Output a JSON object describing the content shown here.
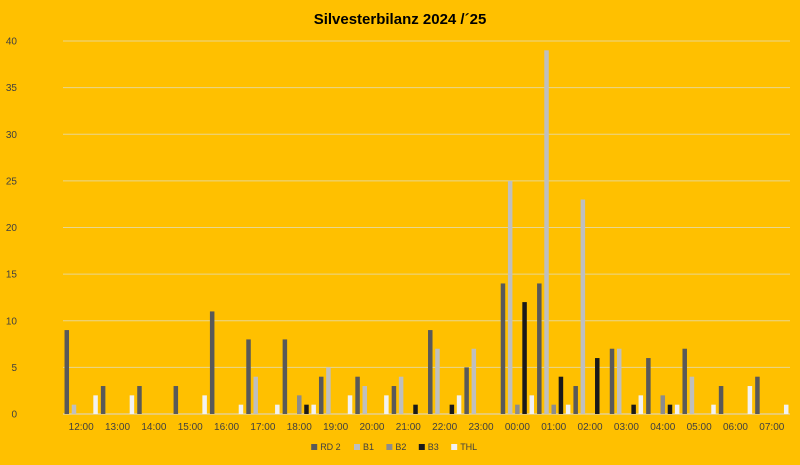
{
  "chart_data": {
    "type": "bar",
    "title": "Silvesterbilanz 2024 /´25",
    "xlabel": "",
    "ylabel": "",
    "ylim": [
      0,
      40
    ],
    "yticks": [
      0,
      5,
      10,
      15,
      20,
      25,
      30,
      35,
      40
    ],
    "grid": true,
    "legend_position": "bottom",
    "categories": [
      "12:00",
      "13:00",
      "14:00",
      "15:00",
      "16:00",
      "17:00",
      "18:00",
      "19:00",
      "20:00",
      "21:00",
      "22:00",
      "23:00",
      "00:00",
      "01:00",
      "02:00",
      "03:00",
      "04:00",
      "05:00",
      "06:00",
      "07:00"
    ],
    "series": [
      {
        "name": "RD 2",
        "color": "#595959",
        "values": [
          9,
          3,
          3,
          3,
          11,
          8,
          8,
          4,
          4,
          3,
          9,
          5,
          14,
          14,
          3,
          7,
          6,
          7,
          3,
          4
        ]
      },
      {
        "name": "B1",
        "color": "#bfbfbf",
        "values": [
          1,
          0,
          0,
          0,
          0,
          4,
          0,
          5,
          3,
          4,
          7,
          7,
          25,
          39,
          23,
          7,
          0,
          4,
          0,
          0
        ]
      },
      {
        "name": "B2",
        "color": "#8c8c8c",
        "values": [
          0,
          0,
          0,
          0,
          0,
          0,
          2,
          0,
          0,
          0,
          0,
          0,
          1,
          1,
          0,
          0,
          2,
          0,
          0,
          0
        ]
      },
      {
        "name": "B3",
        "color": "#1a1a1a",
        "values": [
          0,
          0,
          0,
          0,
          0,
          0,
          1,
          0,
          0,
          1,
          1,
          0,
          12,
          4,
          6,
          1,
          1,
          0,
          0,
          0
        ]
      },
      {
        "name": "THL",
        "color": "#f2f2f2",
        "values": [
          2,
          2,
          0,
          2,
          1,
          1,
          1,
          2,
          2,
          0,
          2,
          0,
          2,
          1,
          0,
          2,
          1,
          1,
          3,
          1
        ]
      }
    ]
  }
}
